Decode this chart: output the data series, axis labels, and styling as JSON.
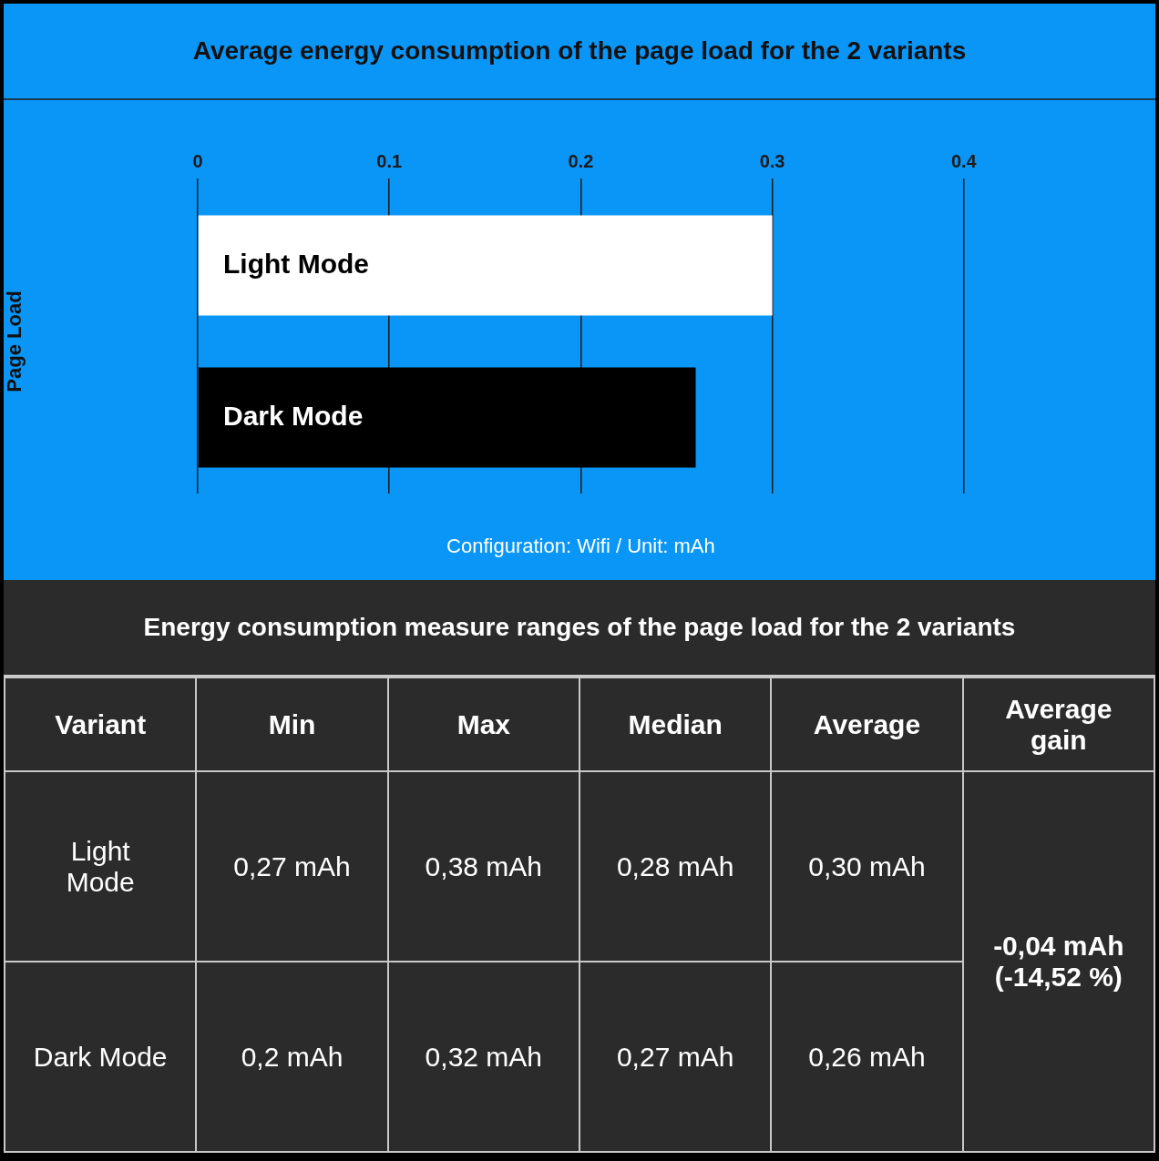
{
  "chart_data": [
    {
      "type": "bar",
      "title": "Average energy consumption of the page load for the 2 variants",
      "orientation": "horizontal",
      "ylabel": "Page Load",
      "categories": [
        "Light Mode",
        "Dark Mode"
      ],
      "values": [
        0.3,
        0.26
      ],
      "colors": [
        "#ffffff",
        "#000000"
      ],
      "xlim": [
        0,
        0.5
      ],
      "xticks": [
        0,
        0.1,
        0.2,
        0.3,
        0.4
      ],
      "grid": "x",
      "annotations": [
        "Configuration: Wifi / Unit: mAh"
      ]
    },
    {
      "type": "other",
      "title": "Energy consumption measure ranges of the page load for the 2 variants",
      "categories": [
        "Variant",
        "Min",
        "Max",
        "Median",
        "Average",
        "Average gain"
      ],
      "y_categories": [
        "Light Mode",
        "Dark Mode"
      ],
      "cell_labels": [
        [
          "0,27 mAh",
          "0,38 mAh",
          "0,28 mAh",
          "0,30 mAh"
        ],
        [
          "0,2 mAh",
          "0,32 mAh",
          "0,27 mAh",
          "0,26 mAh"
        ]
      ],
      "annotations": [
        "-0,04 mAh (-14,52 %)"
      ]
    }
  ]
}
